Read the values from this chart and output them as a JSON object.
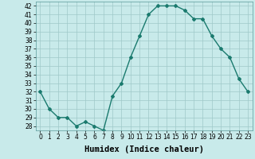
{
  "x": [
    0,
    1,
    2,
    3,
    4,
    5,
    6,
    7,
    8,
    9,
    10,
    11,
    12,
    13,
    14,
    15,
    16,
    17,
    18,
    19,
    20,
    21,
    22,
    23
  ],
  "y": [
    32,
    30,
    29,
    29,
    28,
    28.5,
    28,
    27.5,
    31.5,
    33,
    36,
    38.5,
    41,
    42,
    42,
    42,
    41.5,
    40.5,
    40.5,
    38.5,
    37,
    36,
    33.5,
    32
  ],
  "line_color": "#1a7a6e",
  "marker": "D",
  "marker_size": 2,
  "bg_color": "#c8eaea",
  "grid_color": "#9fc8c8",
  "xlabel": "Humidex (Indice chaleur)",
  "ylim": [
    27.5,
    42.5
  ],
  "xlim": [
    -0.5,
    23.5
  ],
  "yticks": [
    28,
    29,
    30,
    31,
    32,
    33,
    34,
    35,
    36,
    37,
    38,
    39,
    40,
    41,
    42
  ],
  "xticks": [
    0,
    1,
    2,
    3,
    4,
    5,
    6,
    7,
    8,
    9,
    10,
    11,
    12,
    13,
    14,
    15,
    16,
    17,
    18,
    19,
    20,
    21,
    22,
    23
  ],
  "tick_label_size": 5.5,
  "xlabel_size": 7.5,
  "line_width": 1.0
}
